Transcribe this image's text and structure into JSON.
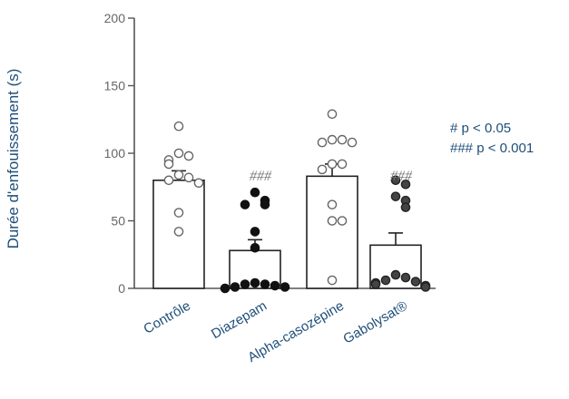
{
  "chart_data": {
    "type": "bar",
    "title": "",
    "xlabel": "",
    "ylabel": "Durée d'enfouissement (s)",
    "ylim": [
      0,
      200
    ],
    "yticks": [
      0,
      50,
      100,
      150,
      200
    ],
    "grid": false,
    "categories": [
      "Contrôle",
      "Diazepam",
      "Alpha-casozépine",
      "Gabolysat®"
    ],
    "values": [
      80,
      28,
      83,
      32
    ],
    "sem": [
      7,
      8,
      9,
      9
    ],
    "significance": [
      "",
      "###",
      "",
      "###"
    ],
    "points": [
      [
        120,
        100,
        98,
        95,
        92,
        84,
        82,
        80,
        78,
        56,
        42
      ],
      [
        71,
        65,
        62,
        62,
        42,
        30,
        4,
        3,
        3,
        2,
        1,
        1,
        0
      ],
      [
        129,
        110,
        110,
        108,
        108,
        92,
        92,
        88,
        62,
        50,
        50,
        6
      ],
      [
        80,
        77,
        68,
        65,
        60,
        10,
        8,
        6,
        5,
        4,
        3,
        2,
        1
      ]
    ],
    "point_fill": [
      "white",
      "black",
      "white",
      "gray"
    ],
    "annotations": [
      "# p < 0.05",
      "### p < 0.001"
    ]
  },
  "colors": {
    "axis": "#555555",
    "bar_fill": "#ffffff",
    "bar_stroke": "#222222",
    "point_black": "#111111",
    "point_gray": "#444444",
    "sig_text": "#777777",
    "label_text": "#1f4e79"
  }
}
